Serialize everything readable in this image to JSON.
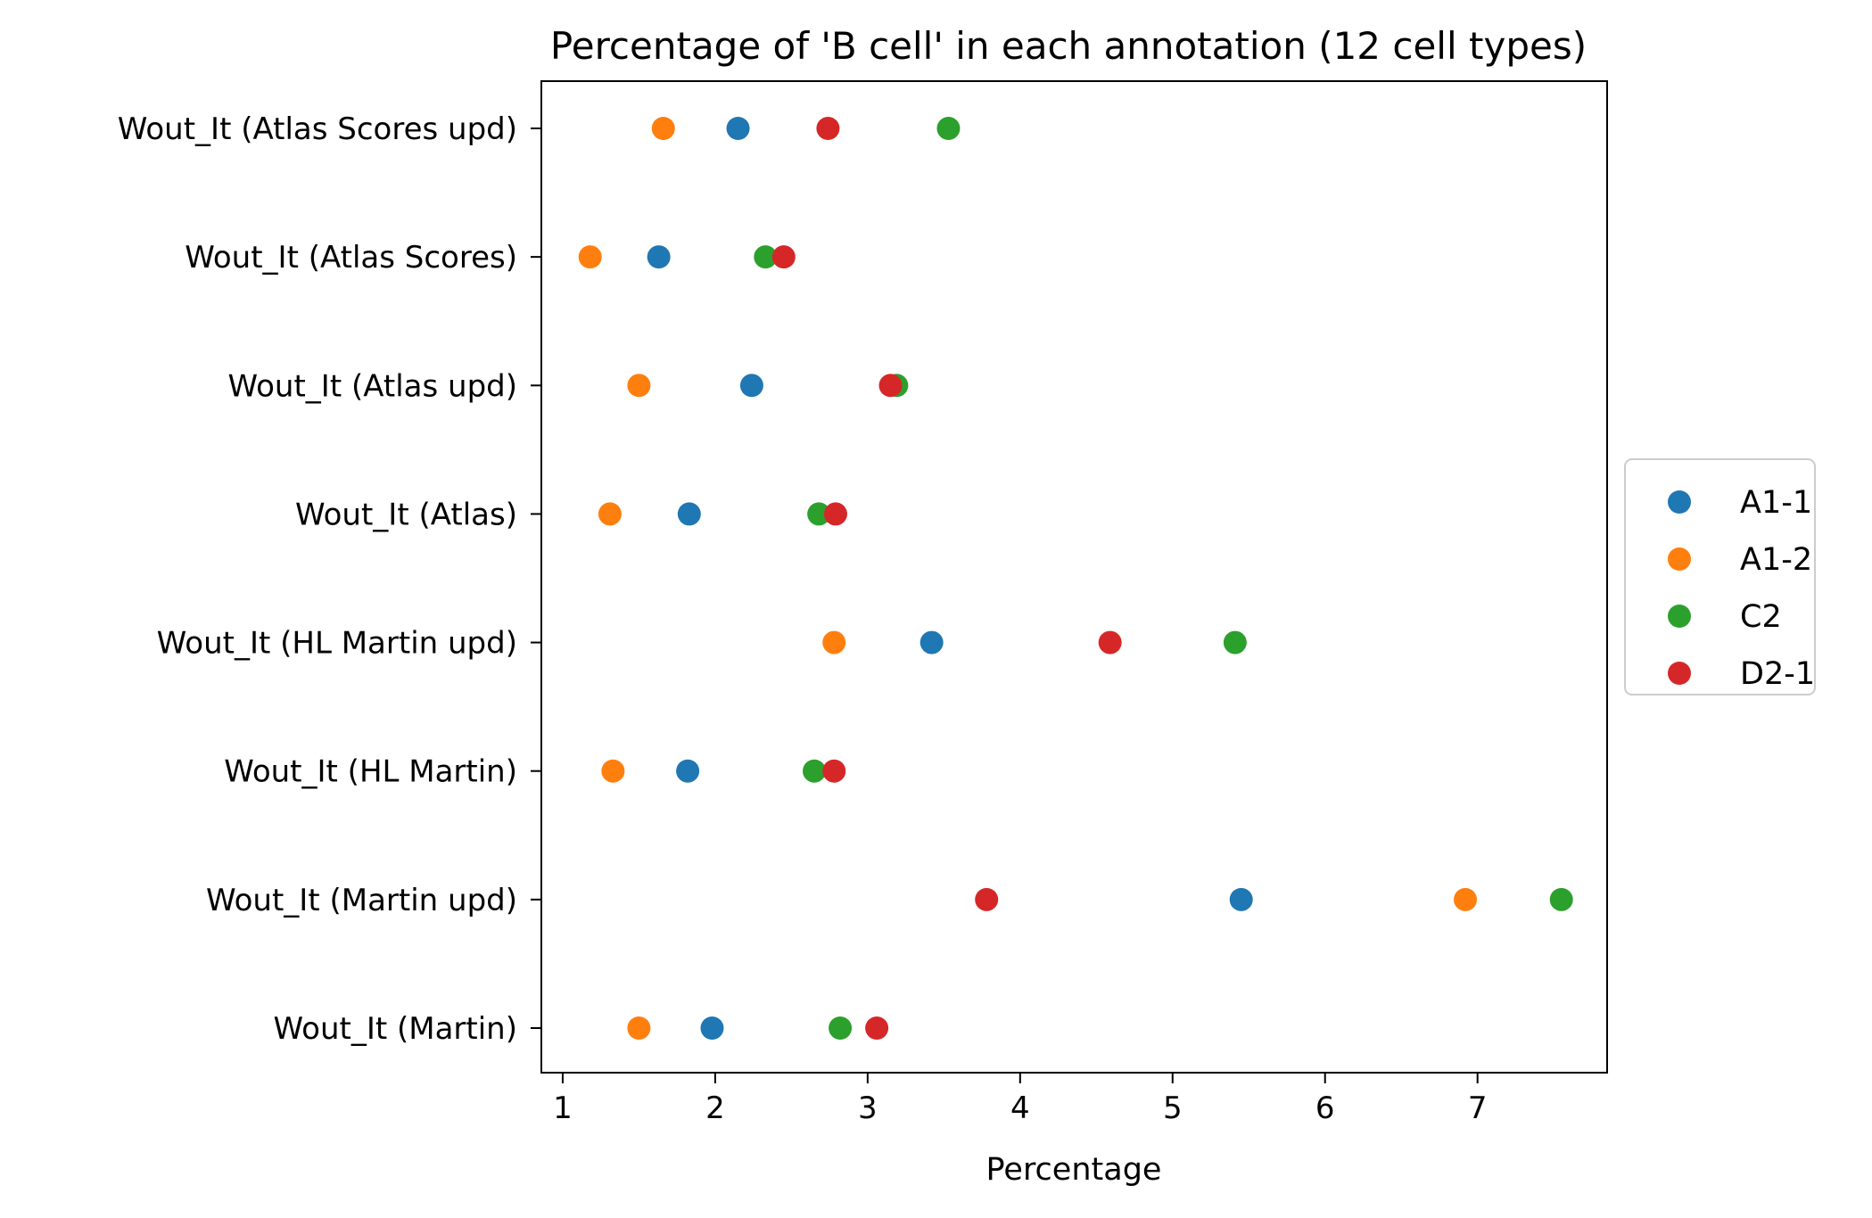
{
  "chart_data": {
    "type": "scatter",
    "title": "Percentage of 'B cell' in each annotation (12 cell types)",
    "xlabel": "Percentage",
    "ylabel": "",
    "xlim": [
      0.86,
      7.85
    ],
    "xticks": [
      1,
      2,
      3,
      4,
      5,
      6,
      7
    ],
    "xtick_labels": [
      "1",
      "2",
      "3",
      "4",
      "5",
      "6",
      "7"
    ],
    "categories": [
      "Wout_It (Martin)",
      "Wout_It (Martin upd)",
      "Wout_It (HL Martin)",
      "Wout_It (HL Martin upd)",
      "Wout_It (Atlas)",
      "Wout_It (Atlas upd)",
      "Wout_It (Atlas Scores)",
      "Wout_It (Atlas Scores upd)"
    ],
    "series": [
      {
        "name": "A1-1",
        "color": "#1f77b4",
        "values": [
          1.98,
          5.45,
          1.82,
          3.42,
          1.83,
          2.24,
          1.63,
          2.15
        ]
      },
      {
        "name": "A1-2",
        "color": "#ff7f0e",
        "values": [
          1.5,
          6.92,
          1.33,
          2.78,
          1.31,
          1.5,
          1.18,
          1.66
        ]
      },
      {
        "name": "C2",
        "color": "#2ca02c",
        "values": [
          2.82,
          7.55,
          2.65,
          5.41,
          2.68,
          3.19,
          2.33,
          3.53
        ]
      },
      {
        "name": "D2-1",
        "color": "#d62728",
        "values": [
          3.06,
          3.78,
          2.78,
          4.59,
          2.79,
          3.15,
          2.45,
          2.74
        ]
      }
    ],
    "legend_position": "center-right, outside plot",
    "grid": false
  }
}
